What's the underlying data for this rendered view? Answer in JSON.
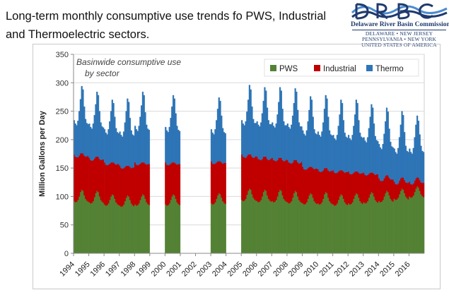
{
  "slide": {
    "title": "Long-term monthly consumptive use trends fo PWS, Industrial and Thermoelectric sectors."
  },
  "logo": {
    "name": "Delaware River Basin Commission",
    "states_line1": "DELAWARE  •  NEW JERSEY",
    "states_line2": "PENNSYLVANIA  •  NEW YORK",
    "states_line3": "UNITED STATES OF AMERICA",
    "colors": {
      "primary": "#1f3a6e",
      "accent": "#4a8bd0"
    }
  },
  "chart_data": {
    "type": "area",
    "stacked": true,
    "annotation": "Basinwide consumptive use by sector",
    "annotation_lines": [
      "Basinwide consumptive use",
      "by sector"
    ],
    "ylabel": "Million Gallons per Day",
    "xlabel": "",
    "ylim": [
      0,
      350
    ],
    "yticks": [
      0,
      50,
      100,
      150,
      200,
      250,
      300,
      350
    ],
    "xticks": [
      "1994",
      "1995",
      "1996",
      "1997",
      "1998",
      "1999",
      "2000",
      "2001",
      "2002",
      "2003",
      "2004",
      "2005",
      "2006",
      "2007",
      "2008",
      "2009",
      "2010",
      "2011",
      "2012",
      "2013",
      "2014",
      "2015",
      "2016"
    ],
    "grid": true,
    "legend_position": "top-right",
    "frequency": "monthly",
    "gaps": [
      [
        "1999-01",
        "1999-12"
      ],
      [
        "2001-01",
        "2002-12"
      ],
      [
        "2004-01",
        "2004-12"
      ]
    ],
    "series": [
      {
        "name": "PWS",
        "color": "#548235"
      },
      {
        "name": "Industrial",
        "color": "#c00000"
      },
      {
        "name": "Thermo",
        "color": "#2e75b6"
      }
    ],
    "records": [
      {
        "year": 1994,
        "pws": [
          92,
          90,
          91,
          94,
          100,
          108,
          112,
          110,
          102,
          96,
          93,
          91
        ],
        "industrial": [
          82,
          80,
          78,
          75,
          72,
          68,
          64,
          66,
          70,
          74,
          78,
          80
        ],
        "thermo": [
          60,
          58,
          56,
          64,
          78,
          95,
          118,
          112,
          86,
          66,
          58,
          56
        ]
      },
      {
        "year": 1995,
        "pws": [
          90,
          88,
          89,
          92,
          99,
          106,
          110,
          108,
          100,
          94,
          91,
          89
        ],
        "industrial": [
          78,
          76,
          74,
          72,
          68,
          64,
          60,
          62,
          66,
          70,
          74,
          76
        ],
        "thermo": [
          60,
          58,
          56,
          64,
          76,
          92,
          114,
          108,
          84,
          66,
          58,
          56
        ]
      },
      {
        "year": 1996,
        "pws": [
          86,
          84,
          85,
          88,
          94,
          100,
          104,
          102,
          96,
          90,
          87,
          85
        ],
        "industrial": [
          74,
          72,
          70,
          68,
          64,
          60,
          56,
          58,
          62,
          66,
          70,
          72
        ],
        "thermo": [
          58,
          56,
          54,
          62,
          74,
          90,
          110,
          104,
          82,
          64,
          56,
          54
        ]
      },
      {
        "year": 1997,
        "pws": [
          84,
          82,
          83,
          86,
          92,
          98,
          102,
          100,
          94,
          88,
          85,
          83
        ],
        "industrial": [
          70,
          68,
          66,
          64,
          60,
          56,
          52,
          54,
          58,
          62,
          66,
          68
        ],
        "thermo": [
          60,
          58,
          56,
          64,
          78,
          96,
          118,
          112,
          86,
          66,
          58,
          56
        ]
      },
      {
        "year": 1998,
        "pws": [
          86,
          84,
          85,
          88,
          94,
          100,
          104,
          102,
          96,
          90,
          87,
          85
        ],
        "industrial": [
          74,
          72,
          70,
          68,
          64,
          60,
          56,
          58,
          62,
          66,
          70,
          72
        ],
        "thermo": [
          64,
          62,
          60,
          68,
          82,
          100,
          124,
          118,
          90,
          70,
          62,
          60
        ]
      },
      {
        "year": 2000,
        "pws": [
          86,
          84,
          85,
          88,
          94,
          100,
          104,
          102,
          96,
          90,
          87,
          85
        ],
        "industrial": [
          74,
          72,
          70,
          68,
          64,
          60,
          56,
          58,
          62,
          66,
          70,
          72
        ],
        "thermo": [
          62,
          60,
          58,
          66,
          80,
          98,
          118,
          112,
          88,
          68,
          60,
          58
        ]
      },
      {
        "year": 2003,
        "pws": [
          88,
          86,
          87,
          90,
          96,
          102,
          106,
          104,
          98,
          92,
          89,
          87
        ],
        "industrial": [
          74,
          72,
          70,
          68,
          64,
          60,
          56,
          58,
          62,
          66,
          70,
          72
        ],
        "thermo": [
          56,
          54,
          52,
          60,
          74,
          92,
          112,
          106,
          82,
          62,
          54,
          52
        ]
      },
      {
        "year": 2005,
        "pws": [
          94,
          92,
          93,
          96,
          103,
          110,
          114,
          112,
          104,
          98,
          95,
          93
        ],
        "industrial": [
          80,
          78,
          76,
          72,
          68,
          64,
          60,
          62,
          66,
          70,
          74,
          78
        ],
        "thermo": [
          60,
          58,
          56,
          64,
          78,
          96,
          122,
          114,
          88,
          68,
          60,
          58
        ]
      },
      {
        "year": 2006,
        "pws": [
          92,
          90,
          91,
          94,
          100,
          108,
          112,
          110,
          102,
          96,
          93,
          91
        ],
        "industrial": [
          78,
          76,
          74,
          70,
          66,
          62,
          58,
          60,
          64,
          68,
          72,
          76
        ],
        "thermo": [
          62,
          60,
          58,
          66,
          80,
          98,
          122,
          116,
          90,
          70,
          62,
          60
        ]
      },
      {
        "year": 2007,
        "pws": [
          92,
          90,
          91,
          94,
          100,
          108,
          112,
          110,
          102,
          96,
          93,
          91
        ],
        "industrial": [
          76,
          74,
          72,
          68,
          64,
          60,
          56,
          58,
          62,
          66,
          70,
          74
        ],
        "thermo": [
          62,
          60,
          58,
          66,
          80,
          98,
          124,
          118,
          90,
          70,
          62,
          60
        ]
      },
      {
        "year": 2008,
        "pws": [
          90,
          88,
          89,
          92,
          98,
          106,
          110,
          108,
          100,
          94,
          91,
          89
        ],
        "industrial": [
          74,
          72,
          70,
          66,
          62,
          58,
          54,
          56,
          60,
          64,
          68,
          72
        ],
        "thermo": [
          64,
          62,
          60,
          68,
          82,
          100,
          126,
          120,
          92,
          72,
          64,
          62
        ]
      },
      {
        "year": 2009,
        "pws": [
          88,
          86,
          87,
          90,
          96,
          102,
          106,
          104,
          98,
          92,
          89,
          87
        ],
        "industrial": [
          64,
          62,
          60,
          58,
          54,
          50,
          46,
          48,
          52,
          56,
          60,
          62
        ],
        "thermo": [
          64,
          62,
          60,
          68,
          82,
          100,
          124,
          118,
          90,
          70,
          62,
          60
        ]
      },
      {
        "year": 2010,
        "pws": [
          88,
          86,
          87,
          90,
          96,
          104,
          108,
          106,
          98,
          92,
          89,
          87
        ],
        "industrial": [
          60,
          58,
          56,
          54,
          50,
          46,
          42,
          44,
          48,
          52,
          56,
          58
        ],
        "thermo": [
          66,
          64,
          62,
          70,
          84,
          104,
          128,
          122,
          94,
          72,
          64,
          62
        ]
      },
      {
        "year": 2011,
        "pws": [
          86,
          84,
          85,
          88,
          94,
          100,
          104,
          102,
          96,
          90,
          87,
          85
        ],
        "industrial": [
          60,
          58,
          56,
          54,
          50,
          46,
          42,
          44,
          48,
          52,
          56,
          58
        ],
        "thermo": [
          62,
          60,
          58,
          66,
          80,
          98,
          124,
          118,
          90,
          70,
          62,
          60
        ]
      },
      {
        "year": 2012,
        "pws": [
          88,
          86,
          87,
          90,
          96,
          102,
          106,
          104,
          98,
          92,
          89,
          87
        ],
        "industrial": [
          56,
          54,
          52,
          50,
          46,
          42,
          38,
          40,
          44,
          48,
          52,
          54
        ],
        "thermo": [
          64,
          62,
          60,
          68,
          82,
          100,
          126,
          120,
          92,
          72,
          64,
          62
        ]
      },
      {
        "year": 2013,
        "pws": [
          90,
          88,
          89,
          92,
          98,
          104,
          108,
          106,
          100,
          94,
          91,
          89
        ],
        "industrial": [
          52,
          50,
          48,
          46,
          42,
          38,
          34,
          36,
          40,
          44,
          48,
          50
        ],
        "thermo": [
          62,
          60,
          58,
          66,
          80,
          98,
          120,
          114,
          88,
          68,
          60,
          58
        ]
      },
      {
        "year": 2014,
        "pws": [
          92,
          90,
          91,
          94,
          100,
          106,
          110,
          108,
          102,
          96,
          93,
          91
        ],
        "industrial": [
          40,
          38,
          36,
          34,
          32,
          30,
          28,
          29,
          31,
          34,
          37,
          39
        ],
        "thermo": [
          60,
          58,
          56,
          64,
          78,
          96,
          118,
          112,
          86,
          66,
          58,
          56
        ]
      },
      {
        "year": 2015,
        "pws": [
          96,
          94,
          95,
          98,
          104,
          110,
          114,
          112,
          106,
          100,
          97,
          95
        ],
        "industrial": [
          30,
          28,
          26,
          25,
          24,
          22,
          20,
          21,
          23,
          25,
          27,
          29
        ],
        "thermo": [
          58,
          56,
          54,
          62,
          76,
          94,
          116,
          110,
          84,
          64,
          56,
          54
        ]
      },
      {
        "year": 2016,
        "pws": [
          100,
          98,
          99,
          102,
          108,
          114,
          118,
          116,
          110,
          104,
          101,
          99
        ],
        "industrial": [
          26,
          24,
          22,
          21,
          20,
          18,
          16,
          17,
          19,
          21,
          23,
          25
        ],
        "thermo": [
          58,
          56,
          54,
          62,
          76,
          94,
          108,
          100,
          80,
          64,
          56,
          54
        ]
      }
    ]
  }
}
